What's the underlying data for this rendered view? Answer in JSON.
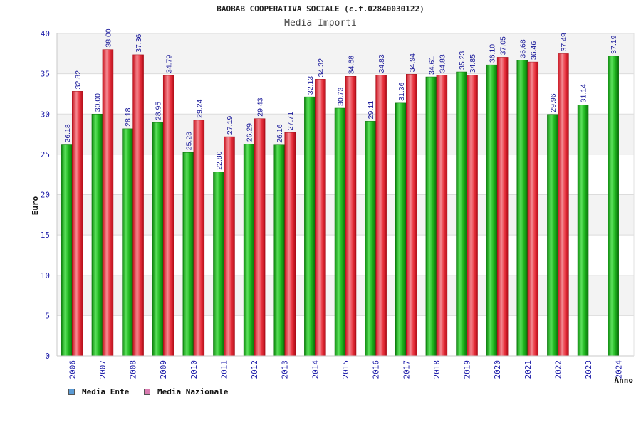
{
  "chart_data": {
    "type": "bar",
    "title": "BAOBAB COOPERATIVA SOCIALE (c.f.02840030122)",
    "subtitle": "Media Importi",
    "xlabel": "Anno",
    "ylabel": "Euro",
    "ylim": [
      0,
      40
    ],
    "yticks": [
      0,
      5,
      10,
      15,
      20,
      25,
      30,
      35,
      40
    ],
    "grid": true,
    "legend_position": "bottom-left",
    "categories": [
      "2006",
      "2007",
      "2008",
      "2009",
      "2010",
      "2011",
      "2012",
      "2013",
      "2014",
      "2015",
      "2016",
      "2017",
      "2018",
      "2019",
      "2020",
      "2021",
      "2022",
      "2023",
      "2024"
    ],
    "series": [
      {
        "name": "Media Ente",
        "color": "#1fb71f",
        "legend_color": "#5b9bd5",
        "values": [
          26.18,
          30.0,
          28.18,
          28.95,
          25.23,
          22.8,
          26.29,
          26.16,
          32.13,
          30.73,
          29.11,
          31.36,
          34.61,
          35.23,
          36.1,
          36.68,
          29.96,
          31.14,
          37.19
        ],
        "labels": [
          "26.18",
          "30.00",
          "28.18",
          "28.95",
          "25.23",
          "22.80",
          "26.29",
          "26.16",
          "32.13",
          "30.73",
          "29.11",
          "31.36",
          "34.61",
          "35.23",
          "36.10",
          "36.68",
          "29.96",
          "31.14",
          "37.19"
        ]
      },
      {
        "name": "Media Nazionale",
        "color": "#e8303c",
        "legend_color": "#d97bb0",
        "values": [
          32.82,
          38.0,
          37.36,
          34.79,
          29.24,
          27.19,
          29.43,
          27.71,
          34.32,
          34.68,
          34.83,
          34.94,
          34.83,
          34.85,
          37.05,
          36.46,
          37.49,
          null,
          null
        ],
        "labels": [
          "32.82",
          "38.00",
          "37.36",
          "34.79",
          "29.24",
          "27.19",
          "29.43",
          "27.71",
          "34.32",
          "34.68",
          "34.83",
          "34.94",
          "34.83",
          "34.85",
          "37.05",
          "36.46",
          "37.49",
          null,
          null
        ]
      }
    ]
  }
}
